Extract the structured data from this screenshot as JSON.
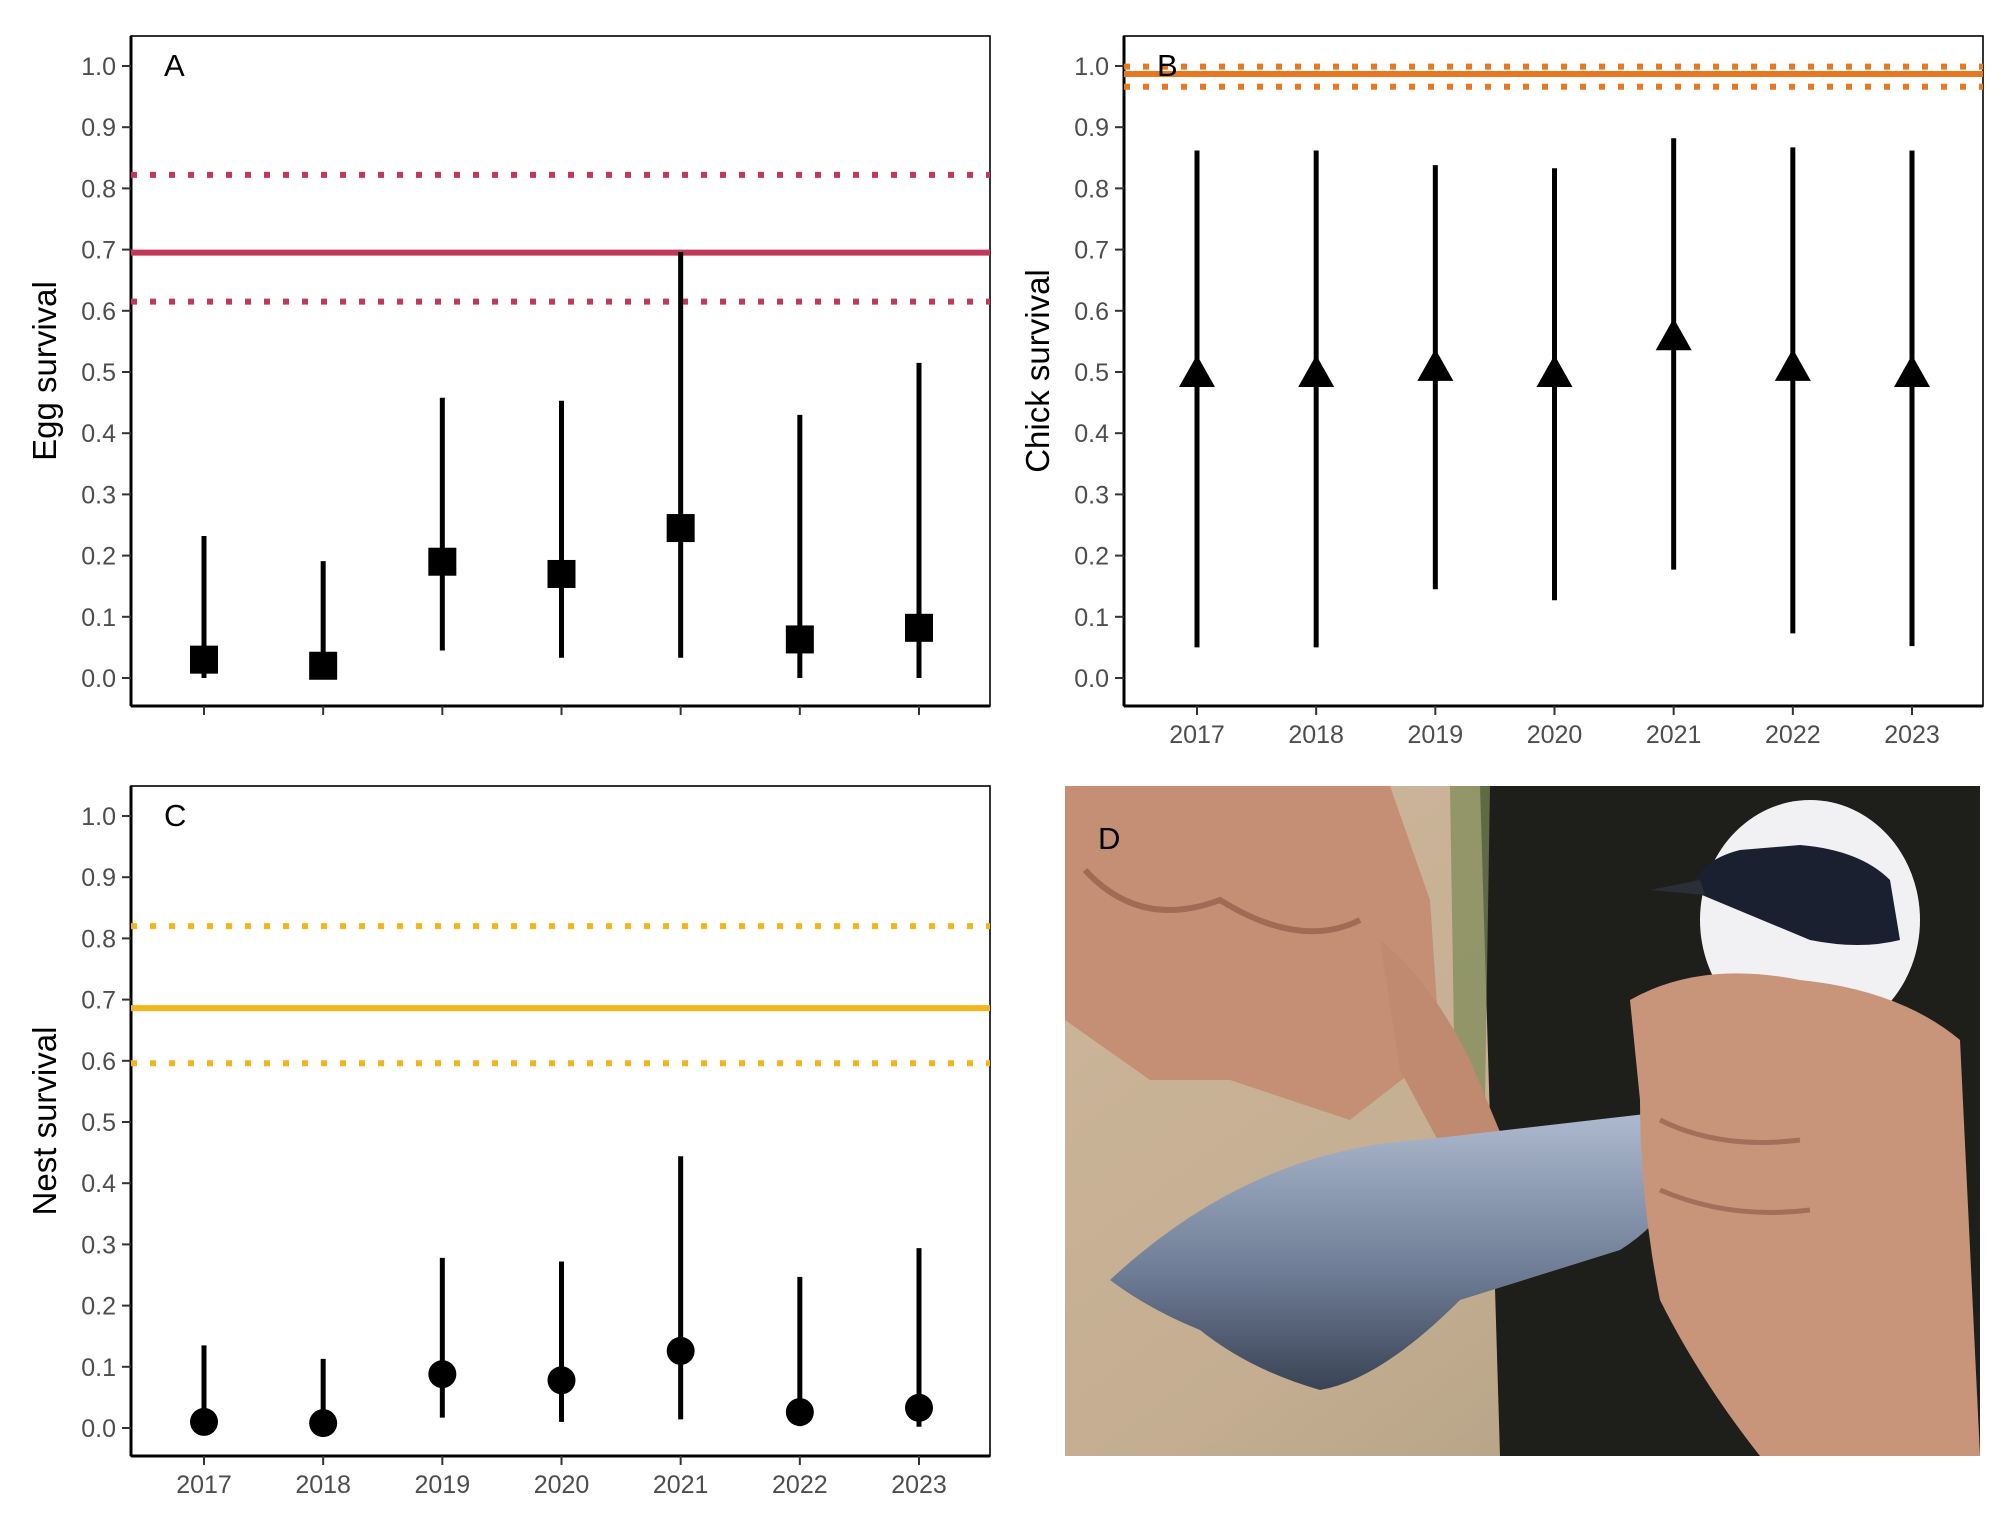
{
  "chart_data": [
    {
      "type": "scatter",
      "panel_label": "A",
      "ylabel": "Egg survival",
      "xlabel": "",
      "categories": [
        "2017",
        "2018",
        "2019",
        "2020",
        "2021",
        "2022",
        "2023"
      ],
      "show_x_tick_labels": false,
      "marker": "square",
      "values": [
        0.03,
        0.02,
        0.19,
        0.17,
        0.245,
        0.063,
        0.082
      ],
      "lower": [
        0.0,
        0.0,
        0.045,
        0.033,
        0.033,
        0.0,
        0.0
      ],
      "upper": [
        0.232,
        0.191,
        0.458,
        0.453,
        0.696,
        0.43,
        0.515
      ],
      "reference": {
        "value": 0.695,
        "lower": 0.615,
        "upper": 0.822,
        "color": "#c0395a"
      },
      "ylim": [
        0,
        1
      ],
      "yticks": [
        "0.0",
        "0.1",
        "0.2",
        "0.3",
        "0.4",
        "0.5",
        "0.6",
        "0.7",
        "0.8",
        "0.9",
        "1.0"
      ],
      "grid": false
    },
    {
      "type": "scatter",
      "panel_label": "B",
      "ylabel": "Chick survival",
      "xlabel": "",
      "categories": [
        "2017",
        "2018",
        "2019",
        "2020",
        "2021",
        "2022",
        "2023"
      ],
      "show_x_tick_labels": true,
      "marker": "triangle",
      "values": [
        0.5,
        0.5,
        0.51,
        0.5,
        0.56,
        0.51,
        0.5
      ],
      "lower": [
        0.05,
        0.05,
        0.145,
        0.127,
        0.177,
        0.073,
        0.052
      ],
      "upper": [
        0.862,
        0.862,
        0.838,
        0.833,
        0.882,
        0.867,
        0.862
      ],
      "reference": {
        "value": 0.987,
        "lower": 0.966,
        "upper": 0.999,
        "color": "#e87722"
      },
      "ylim": [
        0,
        1
      ],
      "yticks": [
        "0.0",
        "0.1",
        "0.2",
        "0.3",
        "0.4",
        "0.5",
        "0.6",
        "0.7",
        "0.8",
        "0.9",
        "1.0"
      ],
      "grid": false
    },
    {
      "type": "scatter",
      "panel_label": "C",
      "ylabel": "Nest survival",
      "xlabel": "",
      "categories": [
        "2017",
        "2018",
        "2019",
        "2020",
        "2021",
        "2022",
        "2023"
      ],
      "show_x_tick_labels": true,
      "marker": "circle",
      "values": [
        0.01,
        0.008,
        0.088,
        0.078,
        0.126,
        0.026,
        0.033
      ],
      "lower": [
        0.0,
        0.0,
        0.017,
        0.01,
        0.014,
        0.003,
        0.002
      ],
      "upper": [
        0.135,
        0.113,
        0.278,
        0.272,
        0.444,
        0.247,
        0.294
      ],
      "reference": {
        "value": 0.686,
        "lower": 0.596,
        "upper": 0.82,
        "color": "#f2b51c"
      },
      "ylim": [
        0,
        1
      ],
      "yticks": [
        "0.0",
        "0.1",
        "0.2",
        "0.3",
        "0.4",
        "0.5",
        "0.6",
        "0.7",
        "0.8",
        "0.9",
        "1.0"
      ],
      "grid": false
    }
  ],
  "photo": {
    "panel_label": "D",
    "icon": "bird-in-hand-photo-icon"
  }
}
